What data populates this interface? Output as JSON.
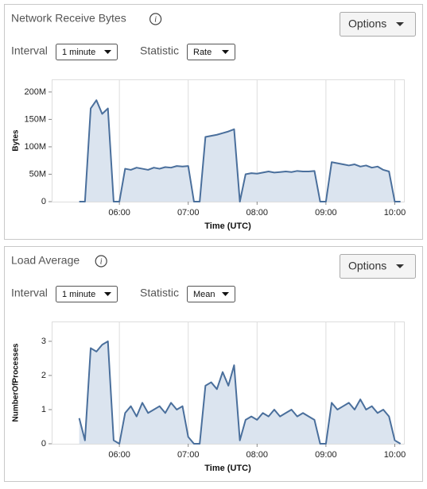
{
  "panels": [
    {
      "title": "Network Receive Bytes",
      "info": "i",
      "options": "Options",
      "interval_label": "Interval",
      "interval_value": "1 minute",
      "statistic_label": "Statistic",
      "statistic_value": "Rate"
    },
    {
      "title": "Load Average",
      "info": "i",
      "options": "Options",
      "interval_label": "Interval",
      "interval_value": "1 minute",
      "statistic_label": "Statistic",
      "statistic_value": "Mean"
    }
  ],
  "chart_data": [
    {
      "type": "line",
      "ylabel": "Bytes",
      "xlabel": "Time (UTC)",
      "color": "#4a6f9c",
      "fill": "#dbe4ef",
      "grid": true,
      "x": [
        325,
        330,
        335,
        340,
        345,
        350,
        355,
        360,
        365,
        370,
        375,
        380,
        385,
        390,
        395,
        400,
        405,
        410,
        415,
        420,
        425,
        430,
        435,
        440,
        445,
        450,
        455,
        460,
        465,
        470,
        475,
        480,
        485,
        490,
        495,
        500,
        505,
        510,
        515,
        520,
        525,
        530,
        535,
        540,
        545,
        550,
        555,
        560,
        565,
        570,
        575,
        580,
        585,
        590,
        595,
        600,
        605
      ],
      "values": [
        0,
        0,
        170000000,
        185000000,
        160000000,
        170000000,
        0,
        0,
        60000000,
        58000000,
        62000000,
        60000000,
        58000000,
        62000000,
        60000000,
        63000000,
        62000000,
        65000000,
        64000000,
        65000000,
        0,
        0,
        118000000,
        120000000,
        122000000,
        125000000,
        128000000,
        132000000,
        0,
        50000000,
        52000000,
        51000000,
        53000000,
        55000000,
        53000000,
        54000000,
        55000000,
        54000000,
        56000000,
        55000000,
        55000000,
        56000000,
        0,
        0,
        72000000,
        70000000,
        68000000,
        66000000,
        68000000,
        64000000,
        66000000,
        62000000,
        64000000,
        58000000,
        55000000,
        0,
        0
      ],
      "xlim": [
        301,
        608
      ],
      "xticks": [
        {
          "value": 360,
          "label": "06:00"
        },
        {
          "value": 420,
          "label": "07:00"
        },
        {
          "value": 480,
          "label": "08:00"
        },
        {
          "value": 540,
          "label": "09:00"
        },
        {
          "value": 600,
          "label": "10:00"
        }
      ],
      "ylim": [
        0,
        223000000
      ],
      "yticks": [
        0,
        {
          "value": 50000000,
          "label": "50M"
        },
        {
          "value": 100000000,
          "label": "100M"
        },
        {
          "value": 150000000,
          "label": "150M"
        },
        {
          "value": 200000000,
          "label": "200M"
        }
      ]
    },
    {
      "type": "line",
      "ylabel": "NumberOfProcesses",
      "xlabel": "Time (UTC)",
      "color": "#4a6f9c",
      "fill": "#dbe4ef",
      "grid": true,
      "x": [
        325,
        330,
        335,
        340,
        345,
        350,
        355,
        360,
        365,
        370,
        375,
        380,
        385,
        390,
        395,
        400,
        405,
        410,
        415,
        420,
        425,
        430,
        435,
        440,
        445,
        450,
        455,
        460,
        465,
        470,
        475,
        480,
        485,
        490,
        495,
        500,
        505,
        510,
        515,
        520,
        525,
        530,
        535,
        540,
        545,
        550,
        555,
        560,
        565,
        570,
        575,
        580,
        585,
        590,
        595,
        600,
        605
      ],
      "values": [
        0.75,
        0.1,
        2.8,
        2.7,
        2.9,
        3.0,
        0.1,
        0,
        0.9,
        1.1,
        0.8,
        1.2,
        0.9,
        1.0,
        1.1,
        0.9,
        1.2,
        1.0,
        1.1,
        0.2,
        0,
        0,
        1.7,
        1.8,
        1.6,
        2.1,
        1.7,
        2.3,
        0.1,
        0.7,
        0.8,
        0.7,
        0.9,
        0.8,
        1.0,
        0.8,
        0.9,
        1.0,
        0.8,
        0.9,
        0.8,
        0.7,
        0,
        0,
        1.2,
        1.0,
        1.1,
        1.2,
        1.0,
        1.3,
        1.0,
        1.1,
        0.9,
        1.0,
        0.8,
        0.1,
        0
      ],
      "xlim": [
        301,
        608
      ],
      "xticks": [
        {
          "value": 360,
          "label": "06:00"
        },
        {
          "value": 420,
          "label": "07:00"
        },
        {
          "value": 480,
          "label": "08:00"
        },
        {
          "value": 540,
          "label": "09:00"
        },
        {
          "value": 600,
          "label": "10:00"
        }
      ],
      "ylim": [
        0,
        3.58
      ],
      "yticks": [
        0,
        1,
        2,
        3
      ]
    }
  ]
}
